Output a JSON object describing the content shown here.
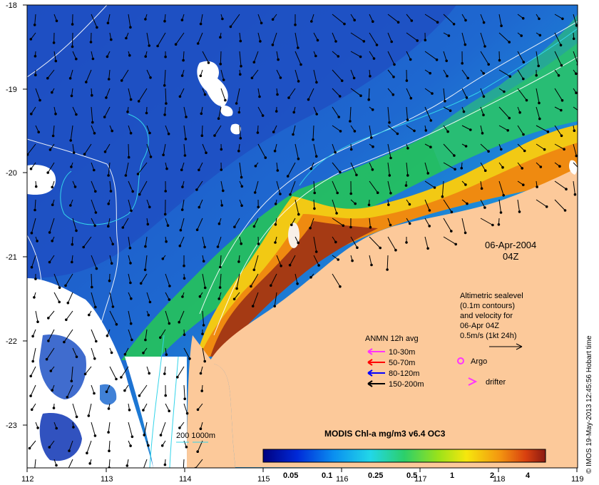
{
  "date": "06-Apr-2004",
  "time": "04Z",
  "colorbar": {
    "title": "MODIS Chl-a mg/m3 v6.4 OC3",
    "ticks": [
      "0.05",
      "0.1",
      "0.25",
      "0.5",
      "1",
      "2",
      "4"
    ]
  },
  "axes": {
    "lon_ticks": [
      "112",
      "113",
      "114",
      "115",
      "116",
      "117",
      "118",
      "119"
    ],
    "lat_ticks": [
      "-18",
      "-19",
      "-20",
      "-21",
      "-22",
      "-23"
    ]
  },
  "altimetry_note": [
    "Altimetric sealevel",
    "(0.1m contours)",
    "and velocity for",
    "06-Apr 04Z",
    "0.5m/s (1kt 24h)"
  ],
  "anmn_legend": {
    "title": "ANMN 12h avg",
    "items": [
      {
        "label": "10-30m",
        "color": "#ff33ff"
      },
      {
        "label": "50-70m",
        "color": "#ff0000"
      },
      {
        "label": "80-120m",
        "color": "#0000ff"
      },
      {
        "label": "150-200m",
        "color": "#000000"
      }
    ]
  },
  "symbols": {
    "argo": "Argo",
    "drifter": "drifter"
  },
  "depth_contours": "200  1000m",
  "credit": "© IMOS 19-May-2013 12:45:56 Hobart time",
  "colors": {
    "land": "#fcc99a",
    "ocean_deep": "#1f56c8",
    "ocean_mid": "#1a8fd8",
    "cyan": "#2ed1e8",
    "green": "#22c34c",
    "yellow": "#f3d611",
    "orange": "#f08a0c",
    "brown": "#a83b14"
  }
}
